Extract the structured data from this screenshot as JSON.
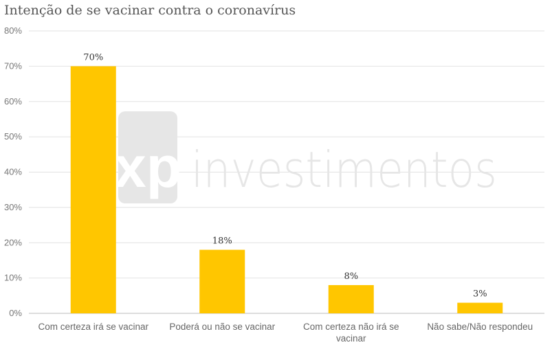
{
  "chart_data": {
    "type": "bar",
    "title": "Intenção de se vacinar contra o coronavírus",
    "categories": [
      [
        "Com certeza irá se vacinar"
      ],
      [
        "Poderá ou não se vacinar"
      ],
      [
        "Com certeza não irá se",
        "vacinar"
      ],
      [
        "Não sabe/Não respondeu"
      ]
    ],
    "values": [
      70,
      18,
      8,
      3
    ],
    "data_labels": [
      "70%",
      "18%",
      "8%",
      "3%"
    ],
    "ylim": [
      0,
      80
    ],
    "yticks": [
      "0%",
      "10%",
      "20%",
      "30%",
      "40%",
      "50%",
      "60%",
      "70%",
      "80%"
    ],
    "grid": true,
    "bar_color": "#FFC600",
    "watermark": {
      "logo": "xp",
      "text": "investimentos",
      "color": "#e6e6e6"
    }
  }
}
